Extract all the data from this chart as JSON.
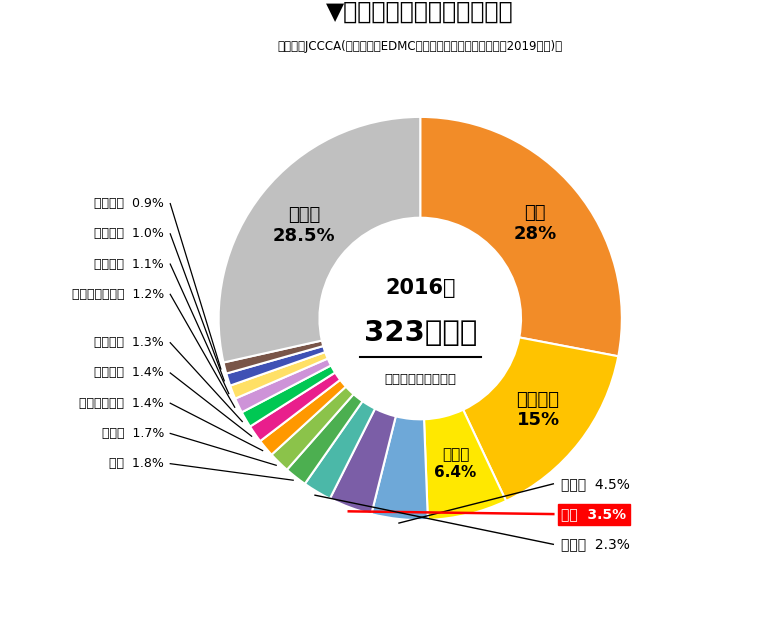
{
  "title": "▼　世界の二酸化炭素排出量",
  "subtitle": "［出典：JCCCA(元データはEDMC／エネルギー・経済統計要覧2019年版)］",
  "center_year": "2016年",
  "center_value": "323億トン",
  "center_unit": "［二酸化炭素換算］",
  "slices": [
    {
      "label": "中国",
      "pct": 28.0,
      "color": "#F28C28",
      "label_on_pie": true
    },
    {
      "label": "アメリカ",
      "pct": 15.0,
      "color": "#FFC300",
      "label_on_pie": true
    },
    {
      "label": "インド",
      "pct": 6.4,
      "color": "#FFE800",
      "label_on_pie": true
    },
    {
      "label": "ロシア",
      "pct": 4.5,
      "color": "#6EA8D8",
      "label_on_pie": false,
      "highlight": false
    },
    {
      "label": "日本",
      "pct": 3.5,
      "color": "#7B5EA7",
      "label_on_pie": false,
      "highlight": true
    },
    {
      "label": "ドイツ",
      "pct": 2.3,
      "color": "#4BB8A8",
      "label_on_pie": false,
      "highlight": false
    },
    {
      "label": "韓国",
      "pct": 1.8,
      "color": "#4CAF50",
      "label_on_pie": false,
      "highlight": false
    },
    {
      "label": "カナダ",
      "pct": 1.7,
      "color": "#8BC34A",
      "label_on_pie": false,
      "highlight": false
    },
    {
      "label": "インドネシア",
      "pct": 1.4,
      "color": "#FF9800",
      "label_on_pie": false,
      "highlight": false
    },
    {
      "label": "メキシコ",
      "pct": 1.4,
      "color": "#E91E8C",
      "label_on_pie": false,
      "highlight": false
    },
    {
      "label": "ブラジル",
      "pct": 1.3,
      "color": "#00C853",
      "label_on_pie": false,
      "highlight": false
    },
    {
      "label": "オーストラリア",
      "pct": 1.2,
      "color": "#CE93D8",
      "label_on_pie": false,
      "highlight": false
    },
    {
      "label": "イギリス",
      "pct": 1.1,
      "color": "#FFE066",
      "label_on_pie": false,
      "highlight": false
    },
    {
      "label": "イタリア",
      "pct": 1.0,
      "color": "#3F51B5",
      "label_on_pie": false,
      "highlight": false
    },
    {
      "label": "フランス",
      "pct": 0.9,
      "color": "#795548",
      "label_on_pie": false,
      "highlight": false
    },
    {
      "label": "その他",
      "pct": 28.5,
      "color": "#C0C0C0",
      "label_on_pie": true,
      "highlight": false
    }
  ],
  "background_color": "#FFFFFF"
}
